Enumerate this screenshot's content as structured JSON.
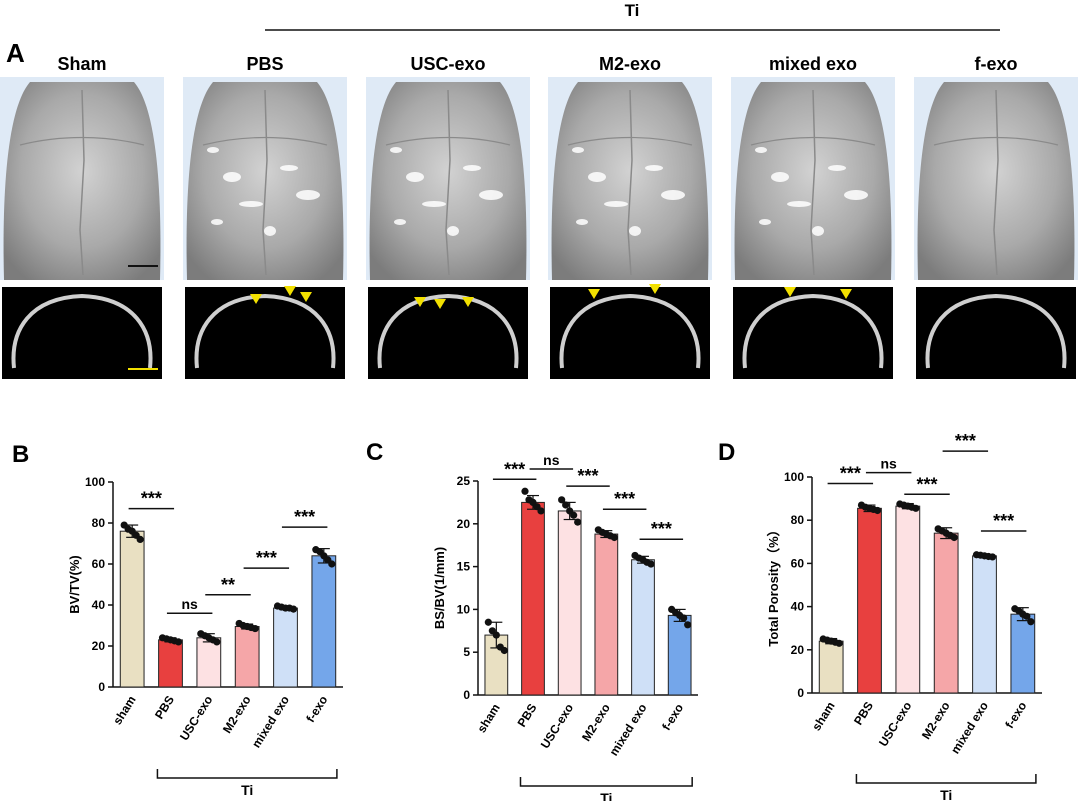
{
  "panel_a": {
    "label": "A",
    "group_label": "Ti",
    "groups": [
      "Sham",
      "PBS",
      "USC-exo",
      "M2-exo",
      "mixed exo",
      "f-exo"
    ]
  },
  "chart_data": [
    {
      "type": "bar",
      "panel_label": "B",
      "ylabel": "BV/TV(%)",
      "ylim": [
        0,
        100
      ],
      "yticks": [
        0,
        20,
        40,
        60,
        80,
        100
      ],
      "categories": [
        "sham",
        "PBS",
        "USC-exo",
        "M2-exo",
        "mixed exo",
        "f-exo"
      ],
      "values": [
        76,
        23,
        24,
        29.5,
        38.5,
        64
      ],
      "errors": [
        3,
        1,
        2,
        1.2,
        0.8,
        3.5
      ],
      "points": [
        [
          79,
          77,
          76,
          74,
          72
        ],
        [
          24,
          23.5,
          23,
          22.5,
          22
        ],
        [
          26,
          25,
          24,
          23,
          22
        ],
        [
          31,
          30,
          29.5,
          29,
          28.5
        ],
        [
          39.5,
          39,
          38.5,
          38.5,
          38
        ],
        [
          67,
          66,
          64,
          62,
          60
        ]
      ],
      "colors": [
        "#e9e0c2",
        "#e8403f",
        "#fde1e3",
        "#f5a6a8",
        "#cfe0f7",
        "#74a6ea"
      ],
      "group_label": "Ti",
      "comparisons": [
        {
          "from": 0,
          "to": 1,
          "label": "***",
          "y": 87
        },
        {
          "from": 1,
          "to": 2,
          "label": "ns",
          "y": 36
        },
        {
          "from": 2,
          "to": 3,
          "label": "**",
          "y": 45
        },
        {
          "from": 3,
          "to": 4,
          "label": "***",
          "y": 58
        },
        {
          "from": 4,
          "to": 5,
          "label": "***",
          "y": 78
        }
      ]
    },
    {
      "type": "bar",
      "panel_label": "C",
      "ylabel": "BS/BV(1/mm)",
      "ylim": [
        0,
        25
      ],
      "yticks": [
        0,
        5,
        10,
        15,
        20,
        25
      ],
      "categories": [
        "sham",
        "PBS",
        "USC-exo",
        "M2-exo",
        "mixed exo",
        "f-exo"
      ],
      "values": [
        7,
        22.5,
        21.5,
        18.8,
        15.8,
        9.3
      ],
      "errors": [
        1.5,
        0.8,
        1.0,
        0.4,
        0.4,
        0.7
      ],
      "points": [
        [
          8.5,
          7.5,
          7,
          5.6,
          5.2
        ],
        [
          23.8,
          22.8,
          22.5,
          22,
          21.5
        ],
        [
          22.8,
          22.2,
          21.5,
          21,
          20.2
        ],
        [
          19.3,
          19,
          18.8,
          18.6,
          18.4
        ],
        [
          16.3,
          16,
          15.8,
          15.5,
          15.3
        ],
        [
          10,
          9.6,
          9.3,
          9,
          8.2
        ]
      ],
      "colors": [
        "#e9e0c2",
        "#e8403f",
        "#fde1e3",
        "#f5a6a8",
        "#cfe0f7",
        "#74a6ea"
      ],
      "group_label": "Ti",
      "comparisons": [
        {
          "from": 0,
          "to": 1,
          "label": "***",
          "y": 25.2
        },
        {
          "from": 1,
          "to": 2,
          "label": "ns",
          "y": 26.4
        },
        {
          "from": 2,
          "to": 3,
          "label": "***",
          "y": 24.4
        },
        {
          "from": 3,
          "to": 4,
          "label": "***",
          "y": 21.7
        },
        {
          "from": 4,
          "to": 5,
          "label": "***",
          "y": 18.2
        }
      ]
    },
    {
      "type": "bar",
      "panel_label": "D",
      "ylabel": "Total Porosity（%）",
      "ylim": [
        0,
        100
      ],
      "yticks": [
        0,
        20,
        40,
        60,
        80,
        100
      ],
      "categories": [
        "sham",
        "PBS",
        "USC-exo",
        "M2-exo",
        "mixed exo",
        "f-exo"
      ],
      "values": [
        24,
        85.5,
        86.5,
        74,
        63.5,
        36.5
      ],
      "errors": [
        1.2,
        1.5,
        1.2,
        2.5,
        0.6,
        3
      ],
      "points": [
        [
          25,
          24.5,
          24,
          23.5,
          23
        ],
        [
          87,
          86,
          85.5,
          85,
          84.5
        ],
        [
          87.5,
          87,
          86.5,
          86,
          85.5
        ],
        [
          76,
          75,
          74,
          73,
          72
        ],
        [
          64,
          63.8,
          63.5,
          63.2,
          63
        ],
        [
          39,
          38,
          36.5,
          35.5,
          33
        ]
      ],
      "colors": [
        "#e9e0c2",
        "#e8403f",
        "#fde1e3",
        "#f5a6a8",
        "#cfe0f7",
        "#74a6ea"
      ],
      "group_label": "Ti",
      "comparisons": [
        {
          "from": 0,
          "to": 1,
          "label": "***",
          "y": 97
        },
        {
          "from": 1,
          "to": 2,
          "label": "ns",
          "y": 102
        },
        {
          "from": 2,
          "to": 3,
          "label": "***",
          "y": 92
        },
        {
          "from": 3,
          "to": 4,
          "label": "***",
          "y": 112
        },
        {
          "from": 4,
          "to": 5,
          "label": "***",
          "y": 75
        }
      ]
    }
  ]
}
